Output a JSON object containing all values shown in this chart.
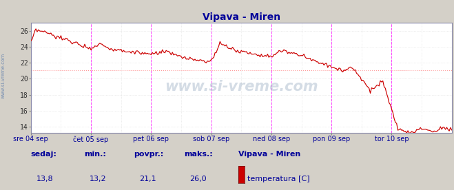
{
  "title": "Vipava - Miren",
  "title_color": "#000099",
  "bg_color": "#d4d0c8",
  "plot_bg_color": "#ffffff",
  "line_color": "#cc0000",
  "grid_color_major_v": "#ff44ff",
  "grid_color_minor_v": "#dddddd",
  "grid_color_h": "#dddddd",
  "avg_line_color": "#ff8888",
  "ylim": [
    13.2,
    27.0
  ],
  "ytick_vals": [
    26,
    24,
    22,
    20,
    18,
    16,
    14
  ],
  "xlabel_color": "#000099",
  "x_labels": [
    "sre 04 sep",
    "čet 05 sep",
    "pet 06 sep",
    "sob 07 sep",
    "ned 08 sep",
    "pon 09 sep",
    "tor 10 sep"
  ],
  "footer_labels": [
    "sedaj:",
    "min.:",
    "povpr.:",
    "maks.:"
  ],
  "footer_values": [
    "13,8",
    "13,2",
    "21,1",
    "26,0"
  ],
  "footer_station": "Vipava - Miren",
  "footer_series": "temperatura [C]",
  "footer_color": "#000099",
  "legend_rect_color": "#cc0000",
  "avg_value": 21.1,
  "watermark": "www.si-vreme.com",
  "side_label": "www.si-vreme.com",
  "num_points": 337
}
